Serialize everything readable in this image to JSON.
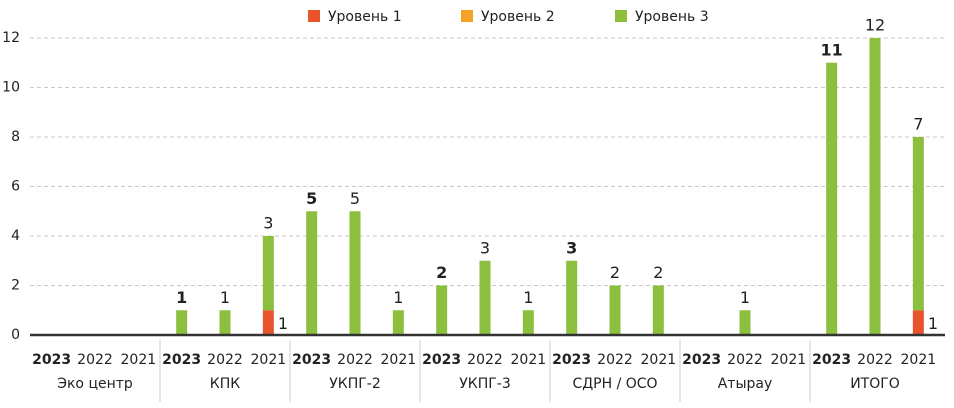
{
  "chart_data": {
    "type": "stacked-bar",
    "categories": [
      "2023",
      "2022",
      "2021",
      "2023",
      "2022",
      "2021",
      "2023",
      "2022",
      "2021",
      "2023",
      "2022",
      "2021",
      "2023",
      "2022",
      "2021",
      "2023",
      "2022",
      "2021",
      "2023",
      "2022",
      "2021"
    ],
    "groups": [
      "Эко центр",
      "КПК",
      "УКПГ-2",
      "УКПГ-3",
      "СДРН / ОСО",
      "Атырау",
      "ИТОГО"
    ],
    "series": [
      {
        "name": "Уровень 1",
        "color": "#e8542c",
        "values": [
          0,
          0,
          0,
          0,
          0,
          1,
          0,
          0,
          0,
          0,
          0,
          0,
          0,
          0,
          0,
          0,
          0,
          0,
          0,
          0,
          1
        ]
      },
      {
        "name": "Уровень 2",
        "color": "#f5a327",
        "values": [
          0,
          0,
          0,
          0,
          0,
          0,
          0,
          0,
          0,
          0,
          0,
          0,
          0,
          0,
          0,
          0,
          0,
          0,
          0,
          0,
          0
        ]
      },
      {
        "name": "Уровень 3",
        "color": "#8dbf3e",
        "values": [
          0,
          0,
          0,
          1,
          1,
          3,
          5,
          5,
          1,
          2,
          3,
          1,
          3,
          2,
          2,
          0,
          1,
          0,
          11,
          12,
          7
        ]
      }
    ],
    "ylim": [
      0,
      12
    ],
    "yticks": [
      0,
      2,
      4,
      6,
      8,
      10,
      12
    ],
    "grid": true,
    "legend": "top"
  }
}
